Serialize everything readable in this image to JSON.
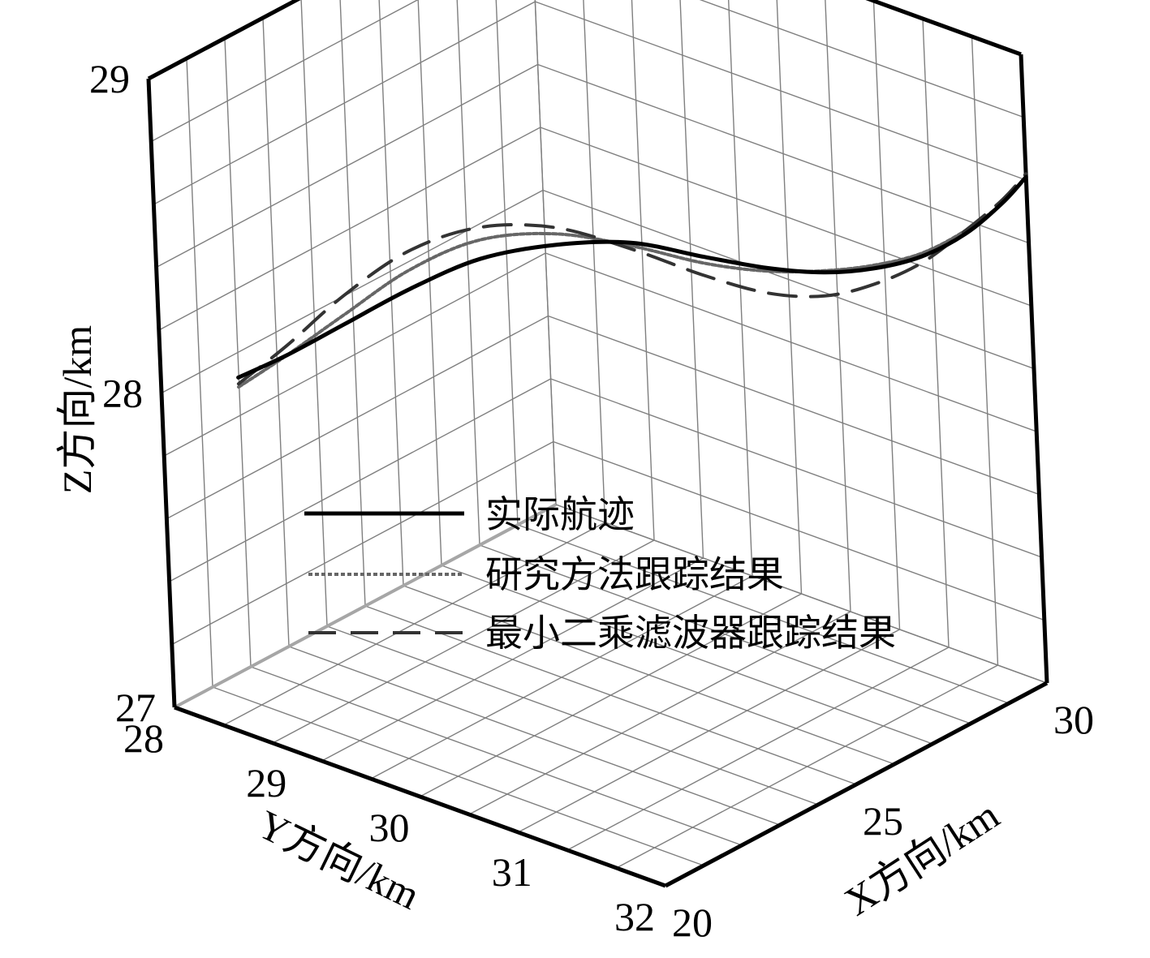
{
  "chart_data": {
    "type": "line",
    "dimension": "3d",
    "grid": true,
    "legend_placement": "center",
    "colors": {
      "actual": "#000000",
      "proposed": "#666666",
      "least_squares": "#333333",
      "grid": "#7f7f7f",
      "box": "#000000"
    },
    "axes": {
      "x": {
        "label": "X方向/km",
        "range": [
          20,
          30
        ],
        "ticks": [
          "20",
          "25",
          "30"
        ]
      },
      "y": {
        "label": "Y方向/km",
        "range": [
          28,
          32
        ],
        "ticks": [
          "28",
          "29",
          "30",
          "31",
          "32"
        ]
      },
      "z": {
        "label": "Z方向/km",
        "range": [
          27,
          29
        ],
        "ticks": [
          "27",
          "28",
          "29"
        ]
      }
    },
    "series": [
      {
        "key": "actual",
        "name": "实际航迹",
        "style": "solid",
        "points": [
          [
            20.0,
            28.64,
            28.14
          ],
          [
            20.9,
            28.76,
            28.17
          ],
          [
            21.8,
            28.96,
            28.24
          ],
          [
            22.7,
            29.22,
            28.33
          ],
          [
            23.6,
            29.52,
            28.41
          ],
          [
            24.5,
            29.86,
            28.445
          ],
          [
            25.5,
            30.16,
            28.43
          ],
          [
            26.5,
            30.44,
            28.36
          ],
          [
            27.3,
            30.7,
            28.31
          ],
          [
            28.0,
            30.94,
            28.285
          ],
          [
            28.6,
            31.16,
            28.29
          ],
          [
            29.1,
            31.4,
            28.33
          ],
          [
            29.5,
            31.64,
            28.41
          ],
          [
            29.8,
            31.86,
            28.52
          ],
          [
            30.0,
            32.0,
            28.61
          ]
        ]
      },
      {
        "key": "proposed",
        "name": "研究方法跟踪结果",
        "style": "dotted",
        "points": [
          [
            20.0,
            28.64,
            28.11
          ],
          [
            20.9,
            28.76,
            28.17
          ],
          [
            21.8,
            28.96,
            28.27
          ],
          [
            22.7,
            29.22,
            28.39
          ],
          [
            23.6,
            29.52,
            28.47
          ],
          [
            24.5,
            29.86,
            28.48
          ],
          [
            25.5,
            30.16,
            28.42
          ],
          [
            26.5,
            30.44,
            28.34
          ],
          [
            27.3,
            30.7,
            28.3
          ],
          [
            28.0,
            30.94,
            28.29
          ],
          [
            28.6,
            31.16,
            28.3
          ],
          [
            29.1,
            31.4,
            28.34
          ],
          [
            29.5,
            31.64,
            28.42
          ],
          [
            29.8,
            31.86,
            28.52
          ],
          [
            30.0,
            32.0,
            28.61
          ]
        ]
      },
      {
        "key": "least_squares",
        "name": "最小二乘滤波器跟踪结果",
        "style": "dashed",
        "points": [
          [
            20.0,
            28.64,
            28.12
          ],
          [
            20.9,
            28.76,
            28.2
          ],
          [
            21.8,
            28.96,
            28.33
          ],
          [
            22.7,
            29.22,
            28.45
          ],
          [
            23.6,
            29.52,
            28.51
          ],
          [
            24.5,
            29.86,
            28.5
          ],
          [
            25.5,
            30.16,
            28.41
          ],
          [
            26.5,
            30.44,
            28.3
          ],
          [
            27.3,
            30.7,
            28.23
          ],
          [
            28.0,
            30.94,
            28.21
          ],
          [
            28.6,
            31.16,
            28.24
          ],
          [
            29.1,
            31.4,
            28.31
          ],
          [
            29.5,
            31.64,
            28.42
          ],
          [
            29.8,
            31.86,
            28.53
          ],
          [
            30.0,
            32.0,
            28.62
          ]
        ]
      }
    ]
  }
}
